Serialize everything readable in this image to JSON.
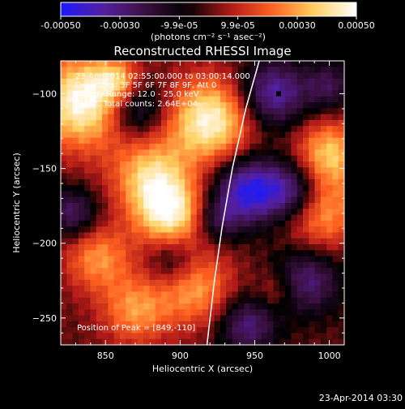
{
  "colorbar": {
    "tick_labels": [
      "-0.00050",
      "-0.00030",
      "-9.9e-05",
      "9.9e-05",
      "0.00030",
      "0.00050"
    ],
    "tick_values": [
      -0.0005,
      -0.0003,
      -9.9e-05,
      9.9e-05,
      0.0003,
      0.0005
    ],
    "range": [
      -0.0005,
      0.0005
    ],
    "units_label": "(photons cm⁻² s⁻¹ asec⁻²)"
  },
  "colors": {
    "background": "#000000",
    "stops": [
      "#1a1aff",
      "#5520a0",
      "#3a1040",
      "#000000",
      "#b01818",
      "#ff6020",
      "#ffd060",
      "#ffffff"
    ],
    "limb": "#ffffff",
    "peak_marker": "#000000"
  },
  "annotations": {
    "time_range": "23-Apr-2014 02:55:00.000 to 03:00:14.000",
    "detectors": "Detectors: 3F 5F 6F 7F 8F 9F, Att 0",
    "energy": "Energy Range: 12.0 - 25.0 keV",
    "clean": "Clean. Total counts: 2.64E+04",
    "peak": "Position of Peak = [849,-110]"
  },
  "footer": {
    "timestamp": "23-Apr-2014 03:30"
  },
  "chart_data": {
    "type": "heatmap",
    "title": "Reconstructed RHESSI Image",
    "xlabel": "Heliocentric X (arcsec)",
    "ylabel": "Heliocentric Y (arcsec)",
    "xlim": [
      820,
      1010
    ],
    "ylim": [
      -268,
      -78
    ],
    "xticks": [
      850,
      900,
      950,
      1000
    ],
    "yticks": [
      -100,
      -150,
      -200,
      -250
    ],
    "xtick_labels": [
      "850",
      "900",
      "950",
      "1000"
    ],
    "ytick_labels": [
      "−100",
      "−150",
      "−200",
      "−250"
    ],
    "peak": [
      849,
      -110
    ],
    "limb_points": [
      [
        953,
        -78
      ],
      [
        944,
        -110
      ],
      [
        935,
        -150
      ],
      [
        928,
        -190
      ],
      [
        923,
        -225
      ],
      [
        918,
        -268
      ]
    ],
    "blobs": [
      {
        "x": 835,
        "y": -105,
        "r": 22,
        "amp": 1.0
      },
      {
        "x": 858,
        "y": -92,
        "r": 10,
        "amp": 0.5
      },
      {
        "x": 920,
        "y": -118,
        "r": 20,
        "amp": 0.95
      },
      {
        "x": 880,
        "y": -155,
        "r": 18,
        "amp": 0.7
      },
      {
        "x": 893,
        "y": -180,
        "r": 16,
        "amp": 0.85
      },
      {
        "x": 845,
        "y": -210,
        "r": 16,
        "amp": 0.55
      },
      {
        "x": 910,
        "y": -230,
        "r": 18,
        "amp": 0.6
      },
      {
        "x": 870,
        "y": -245,
        "r": 16,
        "amp": 0.55
      },
      {
        "x": 1000,
        "y": -140,
        "r": 16,
        "amp": 0.7
      },
      {
        "x": 995,
        "y": -180,
        "r": 18,
        "amp": 0.6
      },
      {
        "x": 965,
        "y": -232,
        "r": 10,
        "amp": 0.3
      },
      {
        "x": 828,
        "y": -180,
        "r": 12,
        "amp": -0.55
      },
      {
        "x": 870,
        "y": -110,
        "r": 14,
        "amp": -0.6
      },
      {
        "x": 962,
        "y": -100,
        "r": 16,
        "amp": -0.75
      },
      {
        "x": 945,
        "y": -165,
        "r": 16,
        "amp": -0.9
      },
      {
        "x": 975,
        "y": -165,
        "r": 14,
        "amp": -0.7
      },
      {
        "x": 985,
        "y": -225,
        "r": 16,
        "amp": -0.6
      },
      {
        "x": 945,
        "y": -255,
        "r": 14,
        "amp": -0.6
      },
      {
        "x": 895,
        "y": -212,
        "r": 12,
        "amp": -0.4
      },
      {
        "x": 1000,
        "y": -95,
        "r": 12,
        "amp": -0.45
      },
      {
        "x": 925,
        "y": -185,
        "r": 10,
        "amp": -0.4
      }
    ]
  }
}
